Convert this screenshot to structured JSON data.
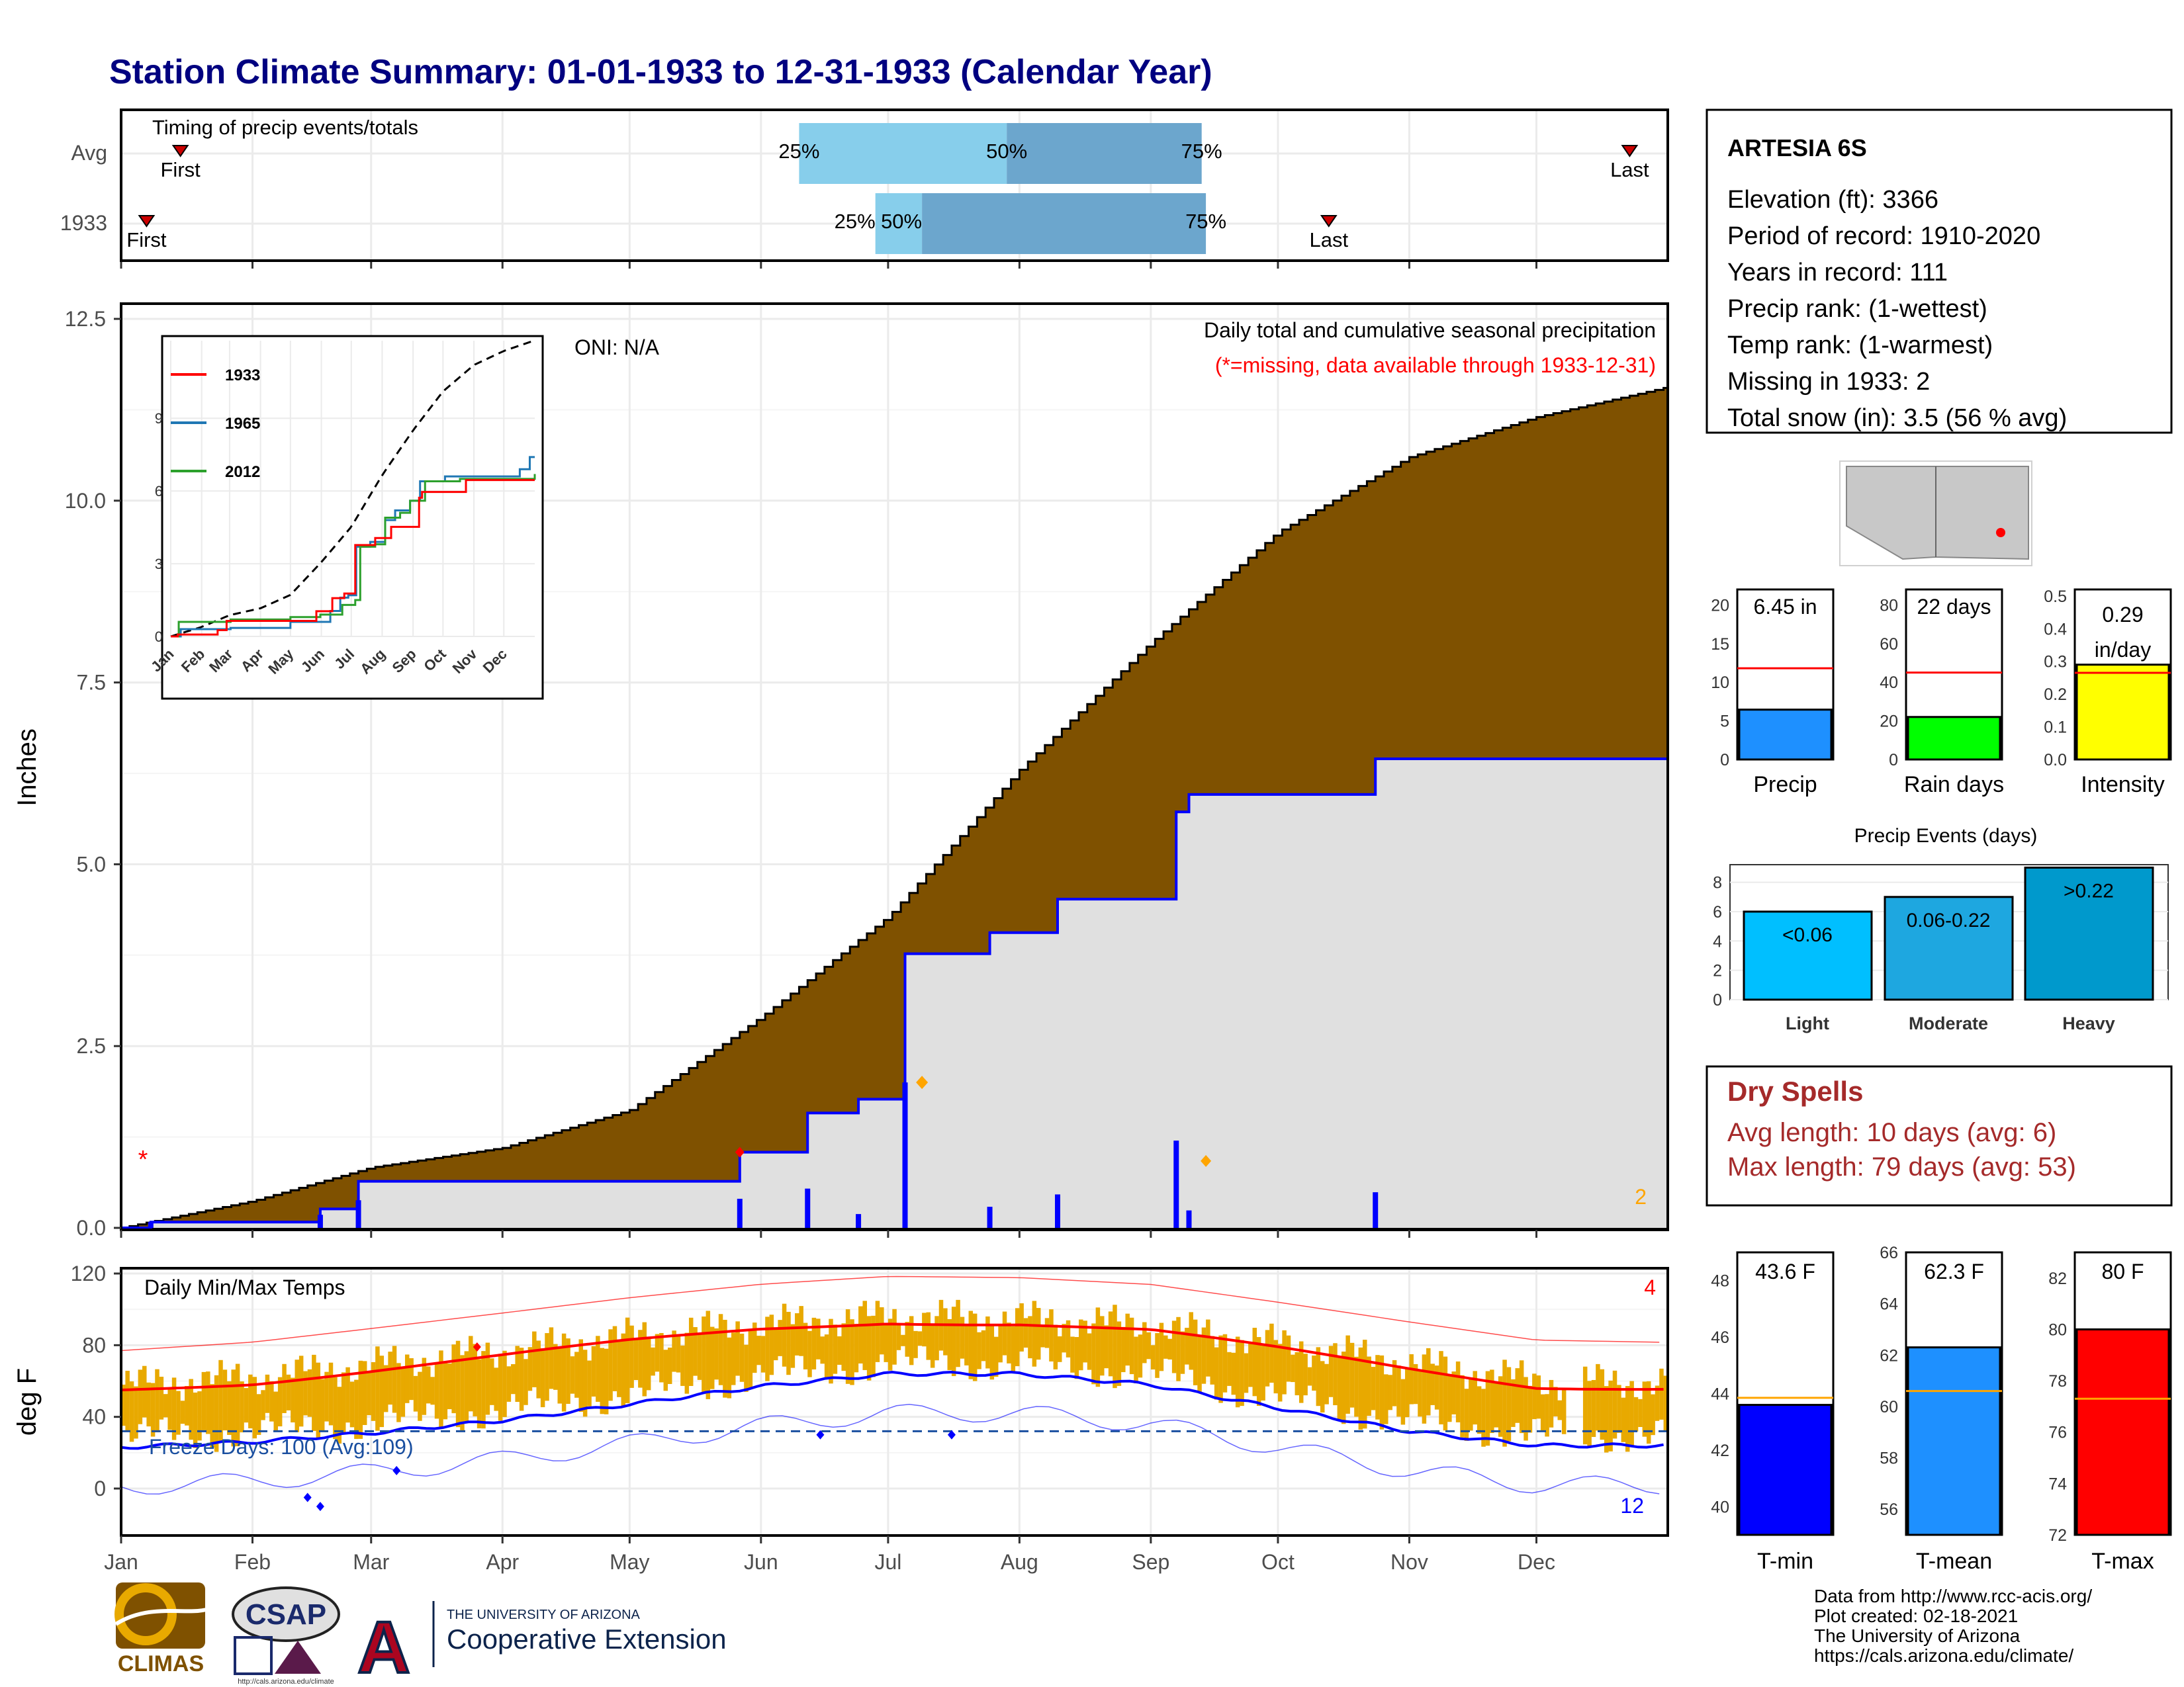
{
  "title": "Station Climate Summary: 01-01-1933 to 12-31-1933 (Calendar Year)",
  "months": [
    "Jan",
    "Feb",
    "Mar",
    "Apr",
    "May",
    "Jun",
    "Jul",
    "Aug",
    "Sep",
    "Oct",
    "Nov",
    "Dec"
  ],
  "colors": {
    "title": "#000080",
    "brown": "#7f5100",
    "blue": "#0000ff",
    "gold": "#e8a900",
    "red": "#ff0000",
    "orange": "#ffa500",
    "light_blue": "#87ceeb",
    "mid_blue": "#6ca6cd",
    "dry_red": "#a52a2a"
  },
  "timing": {
    "title": "Timing of precip events/totals",
    "rows": [
      {
        "label": "Avg",
        "first": "First",
        "last": "Last",
        "p25": "25%",
        "p50": "50%",
        "p75": "75%",
        "first_doy": 14,
        "last_doy": 356,
        "p25_doy": 160,
        "p50_doy": 209,
        "p75_doy": 255
      },
      {
        "label": "1933",
        "first": "First",
        "last": "Last",
        "p25": "25%",
        "p50": "50%",
        "p75": "75%",
        "first_doy": 6,
        "last_doy": 285,
        "p25_doy": 178,
        "p50_doy": 189,
        "p75_doy": 256
      }
    ]
  },
  "precip_panel": {
    "ylabel": "Inches",
    "yticks": [
      "0.0",
      "2.5",
      "5.0",
      "7.5",
      "10.0",
      "12.5"
    ],
    "oni": "ONI: N/A",
    "header": "Daily total and cumulative seasonal precipitation",
    "missing_note": "(*=missing, data available through 1933-12-31)",
    "missing_count": "2",
    "missing_marker": "*"
  },
  "inset": {
    "yticks": [
      "0",
      "3",
      "6",
      "9"
    ],
    "xticks": [
      "Jan",
      "Feb",
      "Mar",
      "Apr",
      "May",
      "Jun",
      "Jul",
      "Aug",
      "Sep",
      "Oct",
      "Nov",
      "Dec"
    ],
    "legend": [
      {
        "name": "1933",
        "color": "#ff0000"
      },
      {
        "name": "1965",
        "color": "#1f77b4"
      },
      {
        "name": "2012",
        "color": "#2ca02c"
      }
    ]
  },
  "temp_panel": {
    "ylabel": "deg F",
    "title": "Daily Min/Max Temps",
    "yticks": [
      "0",
      "40",
      "80",
      "120"
    ],
    "freeze": "Freeze Days: 100 (Avg:109)",
    "count_top": "4",
    "count_bottom": "12"
  },
  "station": {
    "name": "ARTESIA 6S",
    "lines": [
      "Elevation (ft): 3366",
      "Period of record: 1910-2020",
      "Years in record: 111",
      "Precip rank:  (1-wettest)",
      "Temp rank:  (1-warmest)",
      "Missing in 1933: 2",
      "Total snow (in): 3.5 (56 % avg)"
    ]
  },
  "mini_bars": [
    {
      "label": "Precip",
      "value_text": "6.45 in",
      "value": 6.45,
      "avg": 11.8,
      "max": 22,
      "ticks": [
        "0",
        "5",
        "10",
        "15",
        "20"
      ],
      "color": "#1e90ff"
    },
    {
      "label": "Rain days",
      "value_text": "22 days",
      "value": 22,
      "avg": 45,
      "max": 88,
      "ticks": [
        "0",
        "20",
        "40",
        "60",
        "80"
      ],
      "color": "#00ff00"
    },
    {
      "label": "Intensity",
      "value_text": "0.29 in/day",
      "value": 0.29,
      "avg": 0.265,
      "max": 0.52,
      "ticks": [
        "0.0",
        "0.1",
        "0.2",
        "0.3",
        "0.4",
        "0.5"
      ],
      "color": "#ffff00"
    }
  ],
  "precip_events": {
    "title": "Precip Events (days)",
    "yticks": [
      "0",
      "2",
      "4",
      "6",
      "8"
    ],
    "bars": [
      {
        "label": "Light",
        "text": "<0.06",
        "value": 6,
        "color": "#00bfff"
      },
      {
        "label": "Moderate",
        "text": "0.06-0.22",
        "value": 7,
        "color": "#1ea7e0"
      },
      {
        "label": "Heavy",
        "text": ">0.22",
        "value": 9,
        "color": "#0099cc"
      }
    ]
  },
  "dry_spells": {
    "title": "Dry Spells",
    "avg": "Avg length: 10 days (avg: 6)",
    "max": "Max length: 79 days (avg: 53)"
  },
  "temp_bars": [
    {
      "label": "T-min",
      "value_text": "43.6 F",
      "value": 43.6,
      "avg": 43.85,
      "ymin": 39,
      "ymax": 49,
      "ticks": [
        "40",
        "42",
        "44",
        "46",
        "48"
      ],
      "color": "#0000ff"
    },
    {
      "label": "T-mean",
      "value_text": "62.3 F",
      "value": 62.3,
      "avg": 60.6,
      "ymin": 55,
      "ymax": 66,
      "ticks": [
        "56",
        "58",
        "60",
        "62",
        "64",
        "66"
      ],
      "color": "#1e90ff"
    },
    {
      "label": "T-max",
      "value_text": "80 F",
      "value": 80,
      "avg": 77.3,
      "ymin": 72,
      "ymax": 83,
      "ticks": [
        "72",
        "74",
        "76",
        "78",
        "80",
        "82"
      ],
      "color": "#ff0000"
    }
  ],
  "footer": {
    "lines": [
      "Data from http://www.rcc-acis.org/",
      "Plot created: 02-18-2021",
      "The University of Arizona",
      "https://cals.arizona.edu/climate/"
    ],
    "climas": "CLIMAS",
    "csap": "CSAP",
    "csap_url": "http://cals.arizona.edu/climate",
    "ua_top": "THE UNIVERSITY OF ARIZONA",
    "ua_bottom": "Cooperative Extension",
    "ua_letter": "A"
  },
  "chart_data": [
    {
      "type": "area",
      "title": "Daily total and cumulative seasonal precipitation",
      "ylabel": "Inches",
      "ylim": [
        0,
        12.5
      ],
      "grid": true,
      "series": [
        {
          "name": "",
          "x": [
            "01-01",
            "02-01",
            "03-01",
            "04-01",
            "05-01",
            "06-01",
            "07-01",
            "08-01",
            "09-01",
            "10-01",
            "11-01",
            "12-01",
            "12-31"
          ],
          "values": [
            0.0,
            0.37,
            0.83,
            1.1,
            1.62,
            2.9,
            4.28,
            6.3,
            8.05,
            9.57,
            10.6,
            11.15,
            11.55
          ]
        },
        {
          "name": "1933",
          "x": [
            "01-01",
            "01-08",
            "02-17",
            "02-26",
            "05-27",
            "06-12",
            "06-24",
            "07-05",
            "07-25",
            "08-10",
            "09-07",
            "09-10",
            "09-28",
            "10-24",
            "12-31"
          ],
          "values": [
            0.0,
            0.08,
            0.26,
            0.64,
            1.04,
            1.58,
            1.77,
            3.77,
            4.06,
            4.52,
            5.72,
            5.96,
            5.96,
            6.45,
            6.45
          ]
        }
      ]
    },
    {
      "type": "line",
      "title": "Daily Min/Max Temps",
      "ylabel": "deg F",
      "ylim": [
        -20,
        120
      ],
      "grid": true,
      "x": [
        "Jan",
        "Feb",
        "Mar",
        "Apr",
        "May",
        "Jun",
        "Jul",
        "Aug",
        "Sep",
        "Oct",
        "Nov",
        "Dec",
        "Dec-end"
      ],
      "series": [
        {
          "name": "",
          "values": [
            55,
            59,
            66,
            74,
            82,
            89,
            93,
            92,
            88,
            78,
            67,
            57,
            56
          ]
        },
        {
          "name": "",
          "values": [
            23,
            26,
            31,
            38,
            47,
            57,
            64,
            64,
            58,
            45,
            32,
            24,
            24
          ]
        }
      ]
    }
  ]
}
